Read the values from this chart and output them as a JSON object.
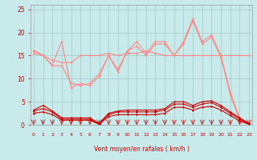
{
  "xlabel": "Vent moyen/en rafales ( km/h )",
  "background_color": "#c8eaea",
  "grid_color": "#a0c8c8",
  "x": [
    0,
    1,
    2,
    3,
    4,
    5,
    6,
    7,
    8,
    9,
    10,
    11,
    12,
    13,
    14,
    15,
    16,
    17,
    18,
    19,
    20,
    21,
    22,
    23
  ],
  "dark_red": "#cc0000",
  "light_red": "#ff8888",
  "ylim": [
    0,
    26
  ],
  "xlim": [
    -0.3,
    23.3
  ],
  "yticks": [
    0,
    5,
    10,
    15,
    20,
    25
  ],
  "series_dark": [
    [
      3.2,
      4.2,
      3.0,
      1.5,
      1.5,
      1.5,
      1.5,
      0.3,
      2.5,
      3.0,
      3.2,
      3.2,
      3.2,
      3.2,
      3.5,
      5.0,
      5.0,
      4.2,
      5.0,
      5.2,
      4.2,
      2.8,
      1.5,
      0.3
    ],
    [
      3.0,
      3.5,
      2.8,
      1.2,
      1.2,
      1.2,
      1.2,
      0.2,
      2.2,
      2.8,
      2.8,
      2.8,
      2.8,
      2.8,
      3.2,
      4.5,
      4.5,
      3.8,
      4.5,
      4.8,
      3.8,
      2.5,
      1.2,
      0.2
    ],
    [
      2.5,
      2.8,
      2.2,
      1.0,
      1.0,
      1.0,
      1.0,
      0.1,
      1.8,
      2.2,
      2.2,
      2.2,
      2.2,
      2.2,
      2.5,
      3.8,
      3.8,
      3.2,
      3.8,
      4.0,
      3.2,
      2.0,
      0.8,
      0.1
    ]
  ],
  "series_light": [
    [
      16.2,
      15.0,
      13.0,
      18.0,
      8.0,
      9.0,
      8.5,
      10.5,
      15.0,
      11.5,
      16.0,
      18.0,
      15.5,
      18.0,
      18.0,
      15.0,
      18.0,
      23.0,
      18.0,
      19.5,
      15.0,
      7.0,
      1.5,
      0.3
    ],
    [
      15.5,
      15.0,
      14.0,
      13.5,
      13.5,
      15.0,
      15.0,
      15.0,
      15.5,
      15.0,
      15.5,
      15.5,
      16.0,
      15.5,
      15.0,
      15.0,
      15.0,
      15.0,
      15.0,
      15.0,
      15.0,
      15.0,
      15.0,
      15.0
    ],
    [
      16.0,
      15.0,
      12.8,
      12.8,
      9.0,
      8.5,
      9.0,
      11.0,
      15.0,
      12.0,
      16.0,
      17.0,
      15.0,
      17.5,
      17.5,
      15.0,
      17.5,
      22.5,
      17.5,
      19.0,
      14.5,
      6.5,
      1.0,
      0.2
    ]
  ]
}
